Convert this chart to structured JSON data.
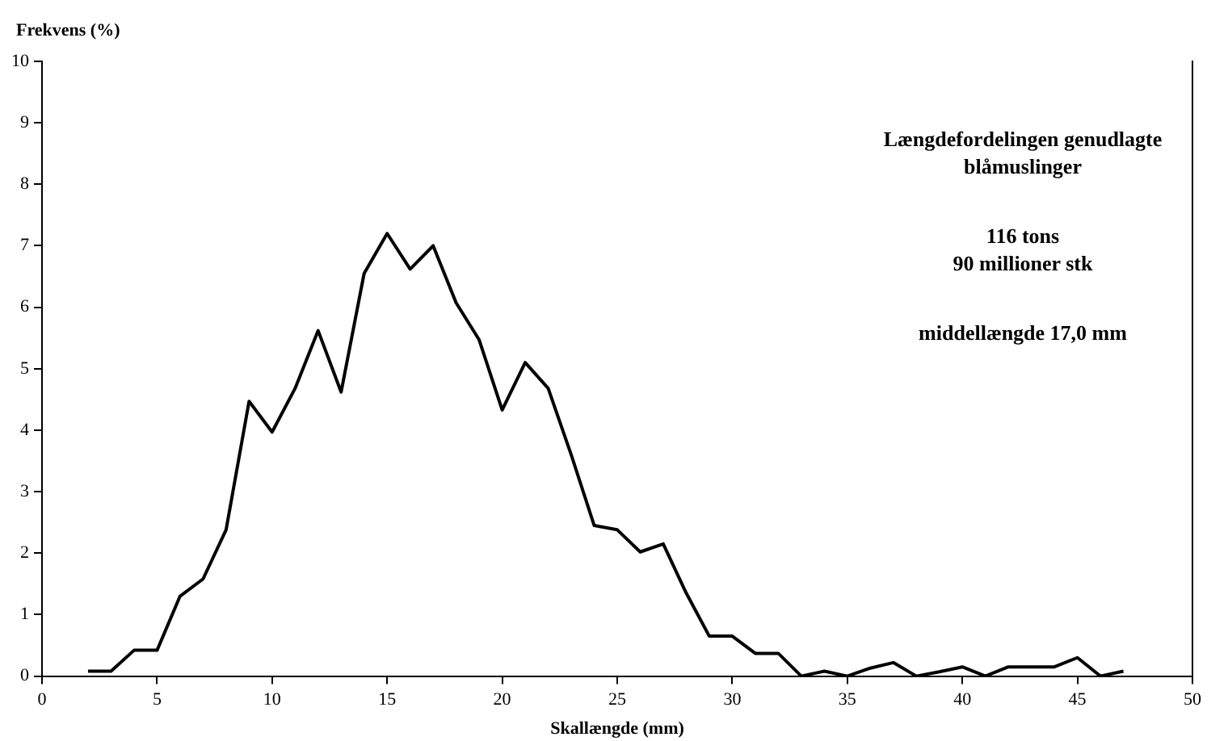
{
  "chart_data": {
    "type": "line",
    "xlabel": "Skallængde (mm)",
    "ylabel": "Frekvens (%)",
    "x": [
      2,
      3,
      4,
      5,
      6,
      7,
      8,
      9,
      10,
      11,
      12,
      13,
      14,
      15,
      16,
      17,
      18,
      19,
      20,
      21,
      22,
      23,
      24,
      25,
      26,
      27,
      28,
      29,
      30,
      31,
      32,
      33,
      34,
      35,
      36,
      37,
      38,
      39,
      40,
      41,
      42,
      43,
      44,
      45,
      46,
      47
    ],
    "series": [
      {
        "color": "#000000",
        "values": [
          0.08,
          0.08,
          0.42,
          0.42,
          1.3,
          1.58,
          2.38,
          4.47,
          3.97,
          4.68,
          5.62,
          4.62,
          6.55,
          7.2,
          6.62,
          7.0,
          6.07,
          5.47,
          4.33,
          5.1,
          4.68,
          3.6,
          2.45,
          2.38,
          2.02,
          2.15,
          1.35,
          0.65,
          0.65,
          0.37,
          0.37,
          0,
          0.08,
          0,
          0.13,
          0.22,
          0,
          0.07,
          0.15,
          0,
          0.15,
          0.15,
          0.15,
          0.3,
          0,
          0.08
        ]
      }
    ],
    "xlim": [
      0,
      50
    ],
    "xticks": [
      0,
      5,
      10,
      15,
      20,
      25,
      30,
      35,
      40,
      45,
      50
    ],
    "ylim": [
      0,
      10
    ],
    "yticks": [
      0,
      1,
      2,
      3,
      4,
      5,
      6,
      7,
      8,
      9,
      10
    ],
    "grid": false,
    "legend": false,
    "marker": "none",
    "line_style": "solid",
    "annotations": [
      "Længdefordelingen genudlagte\nblåmuslinger",
      "116 tons\n90 millioner stk",
      "middellængde 17,0 mm"
    ]
  }
}
